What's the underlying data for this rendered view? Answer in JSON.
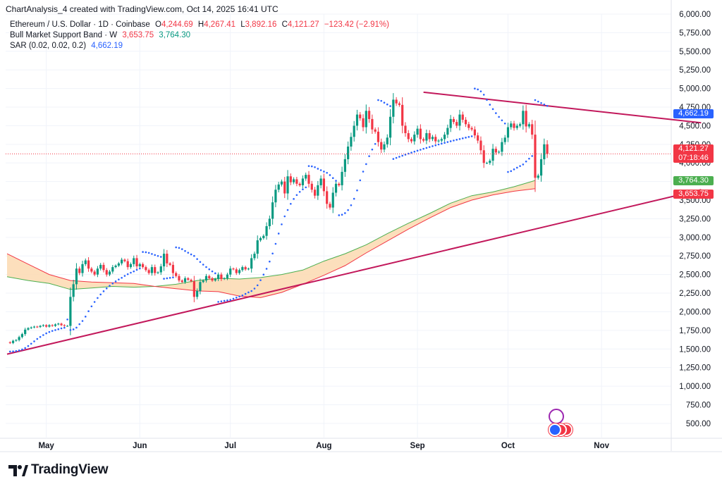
{
  "header": {
    "credit": "ChartAnalysis_4 created with TradingView.com, Oct 14, 2025 16:41 UTC"
  },
  "legend": {
    "symbol": "Ethereum / U.S. Dollar · 1D · Coinbase",
    "o_label": "O",
    "o_value": "4,244.69",
    "h_label": "H",
    "h_value": "4,267.41",
    "l_label": "L",
    "l_value": "3,892.16",
    "c_label": "C",
    "c_value": "4,121.27",
    "change": "−123.42 (−2.91%)",
    "band_name": "Bull Market Support Band · W",
    "band_val1": "3,653.75",
    "band_val2": "3,764.30",
    "sar_name": "SAR (0.02, 0.02, 0.2)",
    "sar_val": "4,662.19"
  },
  "price_tags": {
    "sar": "4,662.19",
    "last": "4,121.27",
    "countdown": "07:18:46",
    "band_upper": "3,764.30",
    "band_lower": "3,653.75"
  },
  "brand": {
    "name": "TradingView"
  },
  "colors": {
    "up": "#089981",
    "down": "#f23645",
    "sar": "#2962ff",
    "trend": "#c2185b",
    "band_fill": "#fcd9b0",
    "band_upper": "#4caf50",
    "band_lower": "#f23645"
  },
  "chart_data": {
    "type": "candlestick",
    "ylim": [
      300,
      6000
    ],
    "y_ticks": [
      "500.00",
      "750.00",
      "1,000.00",
      "1,250.00",
      "1,500.00",
      "1,750.00",
      "2,000.00",
      "2,250.00",
      "2,500.00",
      "2,750.00",
      "3,000.00",
      "3,250.00",
      "3,500.00",
      "3,750.00",
      "4,000.00",
      "4,250.00",
      "4,500.00",
      "4,750.00",
      "5,000.00",
      "5,250.00",
      "5,500.00",
      "5,750.00",
      "6,000.00"
    ],
    "x_ticks": [
      "May",
      "Jun",
      "Jul",
      "Aug",
      "Sep",
      "Oct",
      "Nov"
    ],
    "closes": [
      1590,
      1580,
      1610,
      1620,
      1660,
      1700,
      1760,
      1780,
      1790,
      1800,
      1795,
      1810,
      1820,
      1800,
      1820,
      1810,
      1830,
      1840,
      1820,
      1810,
      1810,
      2200,
      2370,
      2580,
      2520,
      2640,
      2690,
      2580,
      2540,
      2500,
      2580,
      2630,
      2560,
      2500,
      2540,
      2600,
      2620,
      2650,
      2700,
      2680,
      2600,
      2640,
      2720,
      2610,
      2640,
      2600,
      2560,
      2520,
      2600,
      2520,
      2530,
      2610,
      2780,
      2650,
      2630,
      2520,
      2480,
      2420,
      2400,
      2450,
      2430,
      2410,
      2200,
      2280,
      2400,
      2420,
      2480,
      2450,
      2420,
      2440,
      2500,
      2440,
      2450,
      2500,
      2580,
      2570,
      2520,
      2560,
      2600,
      2570,
      2580,
      2720,
      2780,
      2960,
      2990,
      3020,
      3150,
      3250,
      3470,
      3640,
      3710,
      3750,
      3590,
      3820,
      3740,
      3780,
      3720,
      3700,
      3790,
      3840,
      3720,
      3640,
      3560,
      3700,
      3790,
      3620,
      3450,
      3400,
      3600,
      3720,
      3700,
      3880,
      4050,
      4220,
      4350,
      4500,
      4650,
      4600,
      4480,
      4700,
      4590,
      4450,
      4420,
      4280,
      4180,
      4250,
      4340,
      4620,
      4850,
      4800,
      4780,
      4500,
      4400,
      4320,
      4290,
      4380,
      4460,
      4320,
      4300,
      4400,
      4320,
      4350,
      4290,
      4300,
      4320,
      4380,
      4470,
      4590,
      4550,
      4500,
      4650,
      4580,
      4520,
      4470,
      4450,
      4370,
      4300,
      4170,
      4000,
      4000,
      4030,
      4190,
      4140,
      4150,
      4280,
      4340,
      4480,
      4530,
      4470,
      4500,
      4520,
      4700,
      4490,
      4520,
      4380,
      3800,
      3830,
      4050,
      4250,
      4121.27
    ],
    "bull_band_upper_weekly": [
      2470,
      2420,
      2380,
      2300,
      2320,
      2340,
      2330,
      2340,
      2370,
      2420,
      2450,
      2440,
      2460,
      2500,
      2560,
      2680,
      2780,
      2900,
      3050,
      3190,
      3320,
      3460,
      3560,
      3610,
      3680,
      3764.3
    ],
    "bull_band_lower_weekly": [
      2780,
      2640,
      2500,
      2420,
      2400,
      2390,
      2380,
      2340,
      2310,
      2280,
      2270,
      2210,
      2190,
      2260,
      2370,
      2490,
      2620,
      2790,
      2950,
      3110,
      3260,
      3400,
      3500,
      3570,
      3620,
      3653.75
    ],
    "sar_last": 4662.19,
    "last_close": 4121.27,
    "trendlines": [
      {
        "name": "rising support",
        "from": [
          0,
          1430
        ],
        "to": [
          230,
          3640
        ]
      },
      {
        "name": "descending resistance",
        "from": [
          138,
          4950
        ],
        "to": [
          230,
          4540
        ]
      }
    ]
  }
}
